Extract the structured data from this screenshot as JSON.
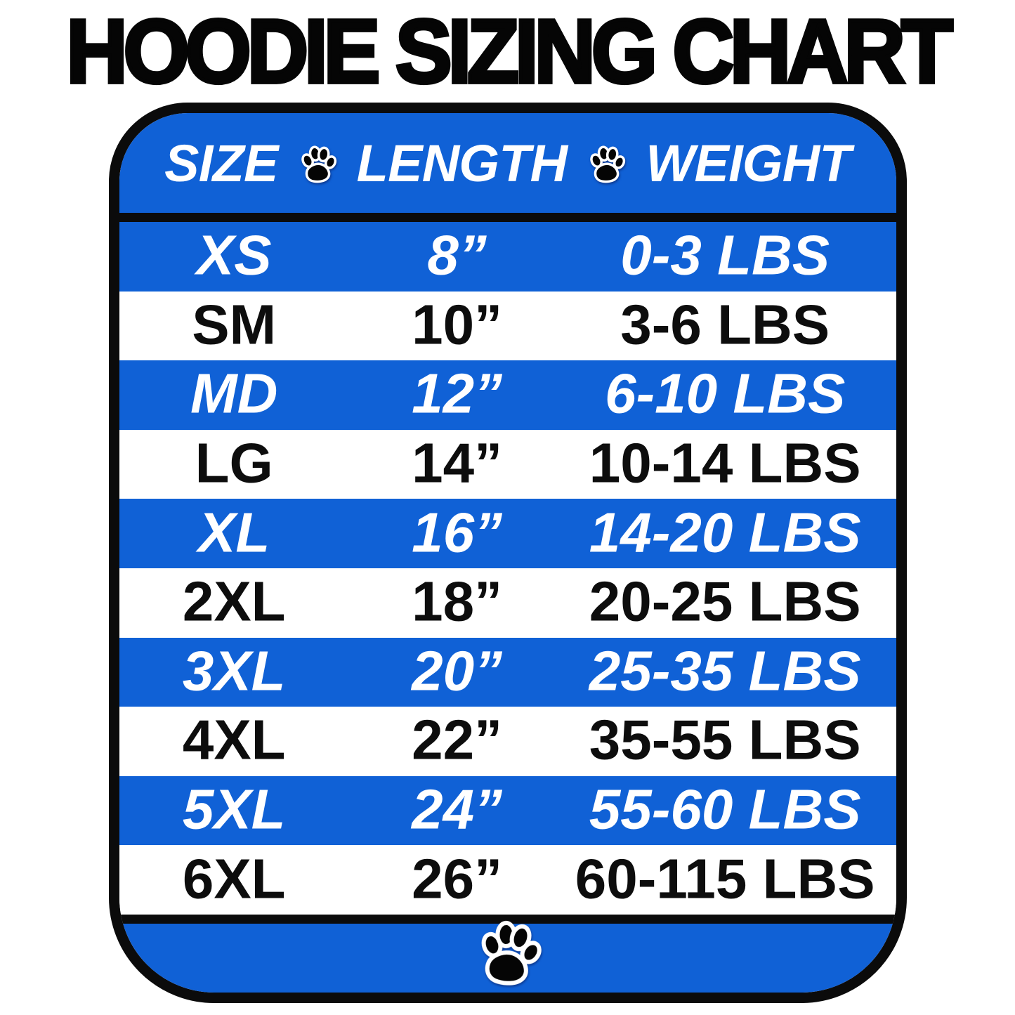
{
  "title": "HOODIE SIZING CHART",
  "colors": {
    "row_blue": "#1061d6",
    "border_black": "#0b0b0b",
    "highlight_text": "#ffffff",
    "regular_text": "#0d0d0d"
  },
  "chart_data": {
    "type": "table",
    "title": "HOODIE SIZING CHART",
    "columns": [
      "SIZE",
      "LENGTH",
      "WEIGHT"
    ],
    "header_separator_icon": "paw-icon",
    "footer_decoration_icon": "paw-icon",
    "layout": "alternating blue/white rows, blue rows use white italic text",
    "rows": [
      {
        "size": "XS",
        "length": "8”",
        "weight": "0-3 LBS",
        "row_style": "blue"
      },
      {
        "size": "SM",
        "length": "10”",
        "weight": "3-6 LBS",
        "row_style": "white"
      },
      {
        "size": "MD",
        "length": "12”",
        "weight": "6-10 LBS",
        "row_style": "blue"
      },
      {
        "size": "LG",
        "length": "14”",
        "weight": "10-14 LBS",
        "row_style": "white"
      },
      {
        "size": "XL",
        "length": "16”",
        "weight": "14-20 LBS",
        "row_style": "blue"
      },
      {
        "size": "2XL",
        "length": "18”",
        "weight": "20-25 LBS",
        "row_style": "white"
      },
      {
        "size": "3XL",
        "length": "20”",
        "weight": "25-35 LBS",
        "row_style": "blue"
      },
      {
        "size": "4XL",
        "length": "22”",
        "weight": "35-55 LBS",
        "row_style": "white"
      },
      {
        "size": "5XL",
        "length": "24”",
        "weight": "55-60 LBS",
        "row_style": "blue"
      },
      {
        "size": "6XL",
        "length": "26”",
        "weight": "60-115 LBS",
        "row_style": "white"
      }
    ]
  }
}
